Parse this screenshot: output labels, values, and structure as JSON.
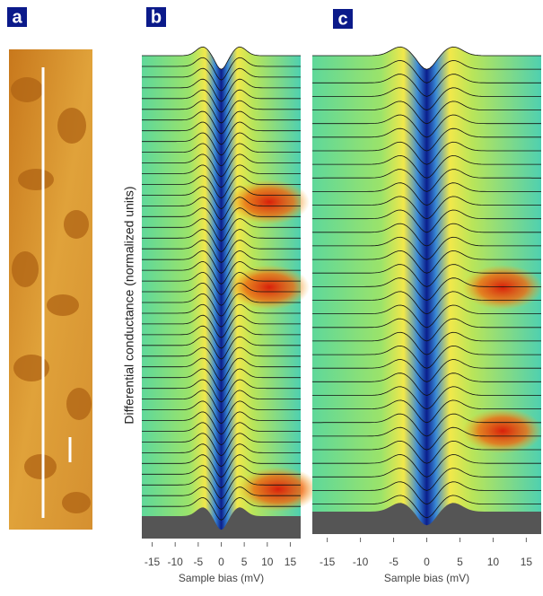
{
  "panels": [
    {
      "label": "a"
    },
    {
      "label": "b",
      "xlabel": "Sample bias (mV)",
      "xlim": [
        -17.25,
        17.25
      ],
      "xticks": [
        -15,
        -10,
        -5,
        0,
        5,
        10,
        15
      ]
    },
    {
      "label": "c",
      "xlabel": "Sample bias (mV)",
      "xlim": [
        -17.25,
        17.25
      ],
      "xticks": [
        -15,
        -10,
        -5,
        0,
        5,
        10,
        15
      ]
    }
  ],
  "ylabel": "Differential conductance (normalized units)"
}
